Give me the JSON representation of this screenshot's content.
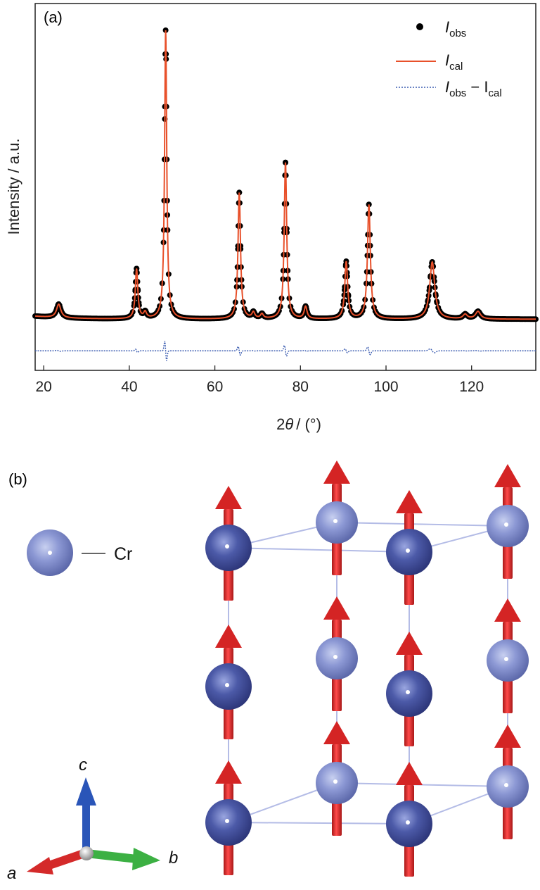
{
  "figure": {
    "panel_a_label": "(a)",
    "panel_b_label": "(b)"
  },
  "chart_data": {
    "type": "scatter",
    "x_label": "2θ / (°)",
    "x_label_theta": "θ",
    "x_label_two": "2",
    "x_label_rest": "/ (°)",
    "y_label": "Intensity / a.u.",
    "xlim": [
      18,
      135
    ],
    "ylim": [
      -0.14,
      1.08
    ],
    "xticks": [
      20,
      40,
      60,
      80,
      100,
      120
    ],
    "grid": false,
    "legend": {
      "placement": "top-right",
      "entries": [
        {
          "main": "I",
          "sub": "obs",
          "style": "dots",
          "color": "#000000"
        },
        {
          "main": "I",
          "sub": "cal",
          "style": "solid-line",
          "color": "#e8502a"
        },
        {
          "main": "I",
          "sub": "obs",
          "minus": " − I",
          "sub2": "cal",
          "style": "dotted-line",
          "color": "#3a5bb0"
        }
      ]
    },
    "background": 0.03,
    "peaks": [
      {
        "x": 23.5,
        "height": 0.045,
        "width": 0.6
      },
      {
        "x": 41.7,
        "height": 0.165,
        "width": 0.35
      },
      {
        "x": 43.7,
        "height": 0.02,
        "width": 0.4
      },
      {
        "x": 48.5,
        "height": 0.96,
        "width": 0.3
      },
      {
        "x": 65.7,
        "height": 0.42,
        "width": 0.35
      },
      {
        "x": 69.0,
        "height": 0.02,
        "width": 0.4
      },
      {
        "x": 71.0,
        "height": 0.015,
        "width": 0.4
      },
      {
        "x": 76.5,
        "height": 0.52,
        "width": 0.35
      },
      {
        "x": 81.2,
        "height": 0.04,
        "width": 0.4
      },
      {
        "x": 90.7,
        "height": 0.19,
        "width": 0.4
      },
      {
        "x": 96.0,
        "height": 0.38,
        "width": 0.4
      },
      {
        "x": 110.8,
        "height": 0.19,
        "width": 0.7
      },
      {
        "x": 118.5,
        "height": 0.015,
        "width": 0.6
      },
      {
        "x": 121.5,
        "height": 0.025,
        "width": 0.7
      }
    ],
    "difference_offset": -0.075,
    "series": [
      {
        "name": "I_obs",
        "color": "#000000"
      },
      {
        "name": "I_cal",
        "color": "#e8502a"
      },
      {
        "name": "I_obs − I_cal",
        "color": "#3a5bb0"
      }
    ]
  },
  "structure": {
    "atom_legend_label": "Cr",
    "atom_color": "#6f7fc0",
    "spin_color": "#e03030",
    "axes": {
      "a": "a",
      "b": "b",
      "c": "c"
    },
    "axis_colors": {
      "a": "#d42a2a",
      "b": "#3cb043",
      "c": "#2a55b8"
    }
  }
}
